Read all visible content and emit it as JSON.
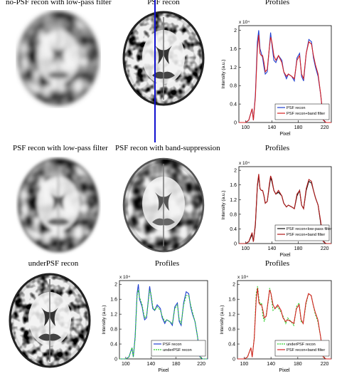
{
  "titles": {
    "r1c1": "no-PSF recon with low-pass filter",
    "r1c2": "PSF recon",
    "r1c3": "Profiles",
    "r2c1": "PSF recon with low-pass filter",
    "r2c2": "PSF recon with band-suppression",
    "r2c3": "Profiles",
    "r3c1": "underPSF recon",
    "r3c2": "Profiles",
    "r3c3": "Profiles"
  },
  "axis": {
    "xlabel": "Pixel",
    "ylabel": "Intensity (a.u.)",
    "exponent": "x 10⁴",
    "xticks": [
      "100",
      "140",
      "180",
      "220"
    ],
    "yticks": [
      "0",
      "0.4",
      "0.8",
      "1.2",
      "1.6",
      "2"
    ]
  },
  "colors": {
    "blue": "#1f3fd0",
    "red": "#d62020",
    "black": "#111111",
    "green": "#2fcf2f",
    "darkred": "#b01818",
    "profile_line": "#1010d0"
  },
  "chart_data": [
    {
      "type": "line",
      "xlim": [
        90,
        230
      ],
      "ylim": [
        0,
        2.1
      ],
      "y_scale_note": "x 10^4",
      "series": [
        {
          "name": "PSF recon",
          "color": "blue",
          "style": "solid",
          "x": [
            90,
            100,
            105,
            110,
            112,
            115,
            118,
            120,
            122,
            124,
            126,
            128,
            130,
            133,
            136,
            138,
            140,
            143,
            146,
            150,
            155,
            158,
            162,
            165,
            170,
            174,
            178,
            182,
            185,
            188,
            192,
            196,
            200,
            203,
            206,
            210,
            214,
            218,
            222,
            230
          ],
          "y": [
            0,
            0,
            0.05,
            0.3,
            0.05,
            0.6,
            1.75,
            2.0,
            1.6,
            1.5,
            1.4,
            1.2,
            1.05,
            1.1,
            1.6,
            1.95,
            1.7,
            1.35,
            1.3,
            1.45,
            1.35,
            1.1,
            0.95,
            1.05,
            1.0,
            0.9,
            1.4,
            1.5,
            1.0,
            0.9,
            1.5,
            1.8,
            1.75,
            1.4,
            1.2,
            1.0,
            0.6,
            0.05,
            0,
            0
          ]
        },
        {
          "name": "PSF recon+band filter",
          "color": "red",
          "style": "solid",
          "x": [
            90,
            100,
            105,
            110,
            112,
            115,
            118,
            120,
            122,
            124,
            126,
            128,
            130,
            133,
            136,
            138,
            140,
            143,
            146,
            150,
            155,
            158,
            162,
            165,
            170,
            174,
            178,
            182,
            185,
            188,
            192,
            196,
            200,
            203,
            206,
            210,
            214,
            218,
            222,
            230
          ],
          "y": [
            0,
            0,
            0.05,
            0.3,
            0.05,
            0.55,
            1.6,
            1.9,
            1.5,
            1.45,
            1.45,
            1.3,
            1.1,
            1.15,
            1.6,
            1.85,
            1.75,
            1.45,
            1.35,
            1.45,
            1.3,
            1.1,
            1.0,
            1.05,
            1.0,
            0.95,
            1.35,
            1.45,
            1.05,
            0.95,
            1.5,
            1.75,
            1.7,
            1.45,
            1.25,
            1.05,
            0.6,
            0.05,
            0,
            0
          ]
        }
      ]
    },
    {
      "type": "line",
      "xlim": [
        90,
        230
      ],
      "ylim": [
        0,
        2.1
      ],
      "y_scale_note": "x 10^4",
      "series": [
        {
          "name": "PSF recon+low-pass filter",
          "color": "black",
          "style": "solid",
          "x": [
            90,
            100,
            105,
            110,
            112,
            115,
            118,
            120,
            122,
            124,
            126,
            128,
            130,
            133,
            136,
            138,
            140,
            143,
            146,
            150,
            155,
            158,
            162,
            165,
            170,
            174,
            178,
            182,
            185,
            188,
            192,
            196,
            200,
            203,
            206,
            210,
            214,
            218,
            222,
            230
          ],
          "y": [
            0,
            0,
            0.05,
            0.25,
            0.05,
            0.5,
            1.55,
            1.85,
            1.5,
            1.45,
            1.45,
            1.3,
            1.1,
            1.15,
            1.55,
            1.8,
            1.7,
            1.45,
            1.35,
            1.4,
            1.3,
            1.1,
            1.0,
            1.05,
            1.0,
            0.95,
            1.3,
            1.45,
            1.05,
            0.95,
            1.45,
            1.7,
            1.65,
            1.45,
            1.25,
            1.05,
            0.55,
            0.05,
            0,
            0
          ]
        },
        {
          "name": "PSF recon+band filter",
          "color": "darkred",
          "style": "solid",
          "x": [
            90,
            100,
            105,
            110,
            112,
            115,
            118,
            120,
            122,
            124,
            126,
            128,
            130,
            133,
            136,
            138,
            140,
            143,
            146,
            150,
            155,
            158,
            162,
            165,
            170,
            174,
            178,
            182,
            185,
            188,
            192,
            196,
            200,
            203,
            206,
            210,
            214,
            218,
            222,
            230
          ],
          "y": [
            0,
            0,
            0.05,
            0.3,
            0.05,
            0.55,
            1.6,
            1.9,
            1.5,
            1.45,
            1.45,
            1.3,
            1.1,
            1.15,
            1.6,
            1.85,
            1.75,
            1.45,
            1.35,
            1.45,
            1.3,
            1.1,
            1.0,
            1.05,
            1.0,
            0.95,
            1.35,
            1.45,
            1.05,
            0.95,
            1.5,
            1.75,
            1.7,
            1.45,
            1.25,
            1.05,
            0.6,
            0.05,
            0,
            0
          ]
        }
      ]
    },
    {
      "type": "line",
      "xlim": [
        90,
        230
      ],
      "ylim": [
        0,
        2.1
      ],
      "y_scale_note": "x 10^4",
      "series": [
        {
          "name": "PSF recon",
          "color": "blue",
          "style": "solid",
          "x": [
            90,
            100,
            105,
            110,
            112,
            115,
            118,
            120,
            122,
            124,
            126,
            128,
            130,
            133,
            136,
            138,
            140,
            143,
            146,
            150,
            155,
            158,
            162,
            165,
            170,
            174,
            178,
            182,
            185,
            188,
            192,
            196,
            200,
            203,
            206,
            210,
            214,
            218,
            222,
            230
          ],
          "y": [
            0,
            0,
            0.05,
            0.3,
            0.05,
            0.6,
            1.75,
            2.0,
            1.6,
            1.5,
            1.4,
            1.2,
            1.05,
            1.1,
            1.6,
            1.95,
            1.7,
            1.35,
            1.3,
            1.45,
            1.35,
            1.1,
            0.95,
            1.05,
            1.0,
            0.9,
            1.4,
            1.5,
            1.0,
            0.9,
            1.5,
            1.8,
            1.75,
            1.4,
            1.2,
            1.0,
            0.6,
            0.05,
            0,
            0
          ]
        },
        {
          "name": "underPSF recon",
          "color": "green",
          "style": "dashed",
          "x": [
            90,
            100,
            105,
            110,
            112,
            115,
            118,
            120,
            122,
            124,
            126,
            128,
            130,
            133,
            136,
            138,
            140,
            143,
            146,
            150,
            155,
            158,
            162,
            165,
            170,
            174,
            178,
            182,
            185,
            188,
            192,
            196,
            200,
            203,
            206,
            210,
            214,
            218,
            222,
            230
          ],
          "y": [
            0,
            0,
            0.05,
            0.3,
            0.05,
            0.55,
            1.7,
            1.85,
            1.65,
            1.55,
            1.45,
            1.25,
            1.1,
            1.15,
            1.55,
            1.85,
            1.75,
            1.4,
            1.3,
            1.4,
            1.3,
            1.15,
            1.0,
            1.05,
            1.0,
            0.95,
            1.35,
            1.45,
            1.05,
            0.95,
            1.45,
            1.7,
            1.7,
            1.45,
            1.25,
            1.0,
            0.6,
            0.05,
            0,
            0
          ]
        }
      ]
    },
    {
      "type": "line",
      "xlim": [
        90,
        230
      ],
      "ylim": [
        0,
        2.1
      ],
      "y_scale_note": "x 10^4",
      "series": [
        {
          "name": "underPSF recon",
          "color": "green",
          "style": "dashed",
          "x": [
            90,
            100,
            105,
            110,
            112,
            115,
            118,
            120,
            122,
            124,
            126,
            128,
            130,
            133,
            136,
            138,
            140,
            143,
            146,
            150,
            155,
            158,
            162,
            165,
            170,
            174,
            178,
            182,
            185,
            188,
            192,
            196,
            200,
            203,
            206,
            210,
            214,
            218,
            222,
            230
          ],
          "y": [
            0,
            0,
            0.05,
            0.3,
            0.05,
            0.55,
            1.75,
            1.95,
            1.6,
            1.45,
            1.5,
            1.15,
            1.0,
            1.2,
            1.55,
            1.9,
            1.75,
            1.3,
            1.35,
            1.4,
            1.25,
            1.15,
            0.95,
            1.1,
            1.0,
            0.9,
            1.4,
            1.5,
            1.0,
            0.95,
            1.45,
            1.75,
            1.7,
            1.45,
            1.2,
            1.0,
            0.6,
            0.05,
            0,
            0
          ]
        },
        {
          "name": "PSF recon+band filter",
          "color": "red",
          "style": "solid",
          "x": [
            90,
            100,
            105,
            110,
            112,
            115,
            118,
            120,
            122,
            124,
            126,
            128,
            130,
            133,
            136,
            138,
            140,
            143,
            146,
            150,
            155,
            158,
            162,
            165,
            170,
            174,
            178,
            182,
            185,
            188,
            192,
            196,
            200,
            203,
            206,
            210,
            214,
            218,
            222,
            230
          ],
          "y": [
            0,
            0,
            0.05,
            0.3,
            0.05,
            0.55,
            1.6,
            1.9,
            1.5,
            1.45,
            1.45,
            1.3,
            1.1,
            1.15,
            1.6,
            1.85,
            1.75,
            1.45,
            1.35,
            1.45,
            1.3,
            1.1,
            1.0,
            1.05,
            1.0,
            0.95,
            1.35,
            1.45,
            1.05,
            0.95,
            1.5,
            1.75,
            1.7,
            1.45,
            1.25,
            1.05,
            0.6,
            0.05,
            0,
            0
          ]
        }
      ]
    }
  ]
}
